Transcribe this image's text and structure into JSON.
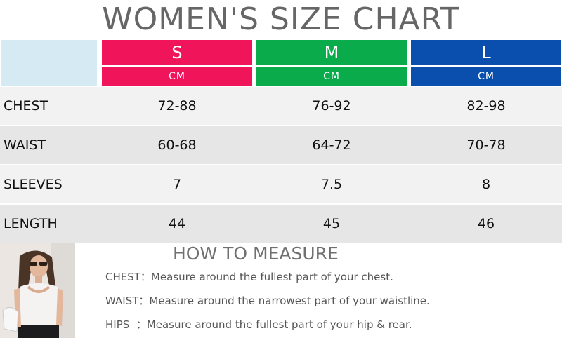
{
  "title": "WOMEN'S SIZE CHART",
  "sizes": [
    {
      "name": "S",
      "unit": "CM",
      "color": "#f0145a"
    },
    {
      "name": "M",
      "unit": "CM",
      "color": "#0aab4b"
    },
    {
      "name": "L",
      "unit": "CM",
      "color": "#0a4fad"
    }
  ],
  "header_blank_color": "#d5eaf2",
  "rows": [
    {
      "label": "CHEST",
      "values": [
        "72-88",
        "76-92",
        "82-98"
      ]
    },
    {
      "label": "WAIST",
      "values": [
        "60-68",
        "64-72",
        "70-78"
      ]
    },
    {
      "label": "SLEEVES",
      "values": [
        "7",
        "7.5",
        "8"
      ]
    },
    {
      "label": "LENGTH",
      "values": [
        "44",
        "45",
        "46"
      ]
    }
  ],
  "how_to_measure": {
    "title": "HOW TO MEASURE",
    "lines": [
      {
        "label": "CHEST：",
        "text": "Measure around the fullest part of your chest."
      },
      {
        "label": "WAIST：",
        "text": "Measure around the narrowest part of your waistline."
      },
      {
        "label": "HIPS  ：",
        "text": "Measure around the fullest part of your hip & rear."
      }
    ]
  }
}
